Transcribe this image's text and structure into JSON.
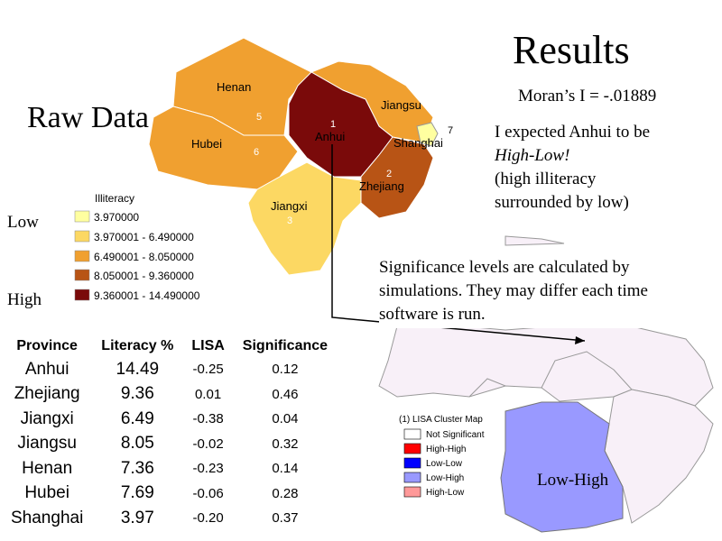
{
  "slide": {
    "title": "Results",
    "raw_label": "Raw Data",
    "moran": "Moran’s I = -.01889",
    "expect_line1": "I expected Anhui to be",
    "expect_line2": "High-Low!",
    "expect_line3": "(high illiteracy",
    "expect_line4": "surrounded by low)",
    "sig_note": "Significance levels are calculated by simulations.  They may differ each time software is run.",
    "low_label": "Low",
    "high_label": "High",
    "lowhigh_label": "Low-High"
  },
  "raw_map": {
    "provinces": [
      {
        "name": "Henan",
        "num": "5",
        "color": "#f0a030"
      },
      {
        "name": "Hubei",
        "num": "6",
        "color": "#f0a030"
      },
      {
        "name": "Anhui",
        "num": "1",
        "color": "#7a0a0a"
      },
      {
        "name": "Jiangsu",
        "num": "",
        "color": "#f0a030"
      },
      {
        "name": "Shanghai",
        "num": "7",
        "color": "#ffffa0"
      },
      {
        "name": "Zhejiang",
        "num": "2",
        "color": "#b85415"
      },
      {
        "name": "Jiangxi",
        "num": "3",
        "color": "#fcd863"
      }
    ],
    "legend_title": "Illiteracy",
    "legend": [
      {
        "label": "3.970000",
        "color": "#ffffa0"
      },
      {
        "label": "3.970001 - 6.490000",
        "color": "#fcd863"
      },
      {
        "label": "6.490001 - 8.050000",
        "color": "#f0a030"
      },
      {
        "label": "8.050001 - 9.360000",
        "color": "#b85415"
      },
      {
        "label": "9.360001 - 14.490000",
        "color": "#7a0a0a"
      }
    ]
  },
  "table": {
    "headers": [
      "Province",
      "Literacy %",
      "LISA",
      "Significance"
    ],
    "rows": [
      [
        "Anhui",
        "14.49",
        "-0.25",
        "0.12"
      ],
      [
        "Zhejiang",
        "9.36",
        "0.01",
        "0.46"
      ],
      [
        "Jiangxi",
        "6.49",
        "-0.38",
        "0.04"
      ],
      [
        "Jiangsu",
        "8.05",
        "-0.02",
        "0.32"
      ],
      [
        "Henan",
        "7.36",
        "-0.23",
        "0.14"
      ],
      [
        "Hubei",
        "7.69",
        "-0.06",
        "0.28"
      ],
      [
        "Shanghai",
        "3.97",
        "-0.20",
        "0.37"
      ]
    ]
  },
  "lisa_map": {
    "legend_title": "(1) LISA Cluster Map",
    "legend": [
      {
        "label": "Not Significant",
        "color": "#ffffff"
      },
      {
        "label": "High-High",
        "color": "#ff0000"
      },
      {
        "label": "Low-Low",
        "color": "#0000ff"
      },
      {
        "label": "Low-High",
        "color": "#9999ff"
      },
      {
        "label": "High-Low",
        "color": "#ff9999"
      }
    ],
    "colors": {
      "not_significant": "#f8f0f8",
      "low_high": "#9999ff"
    }
  }
}
